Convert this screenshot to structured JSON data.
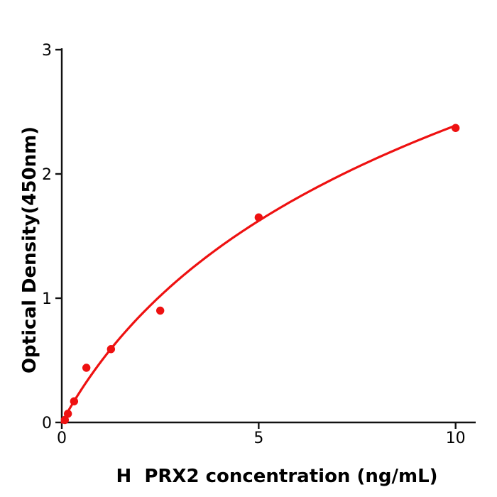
{
  "chart_data": {
    "type": "scatter",
    "subtype": "standard-curve-with-fit",
    "title": "",
    "xlabel": "H  PRX2 concentration (ng/mL)",
    "ylabel": "Optical Density(450nm)",
    "x_ticks": [
      0,
      5,
      10
    ],
    "y_ticks": [
      0,
      1,
      2,
      3
    ],
    "xlim": [
      0,
      10.5
    ],
    "ylim": [
      0,
      3
    ],
    "grid": false,
    "legend": null,
    "points": [
      {
        "x": 0.078,
        "y": 0.02
      },
      {
        "x": 0.156,
        "y": 0.07
      },
      {
        "x": 0.3125,
        "y": 0.17
      },
      {
        "x": 0.625,
        "y": 0.44
      },
      {
        "x": 1.25,
        "y": 0.59
      },
      {
        "x": 2.5,
        "y": 0.9
      },
      {
        "x": 5,
        "y": 1.65
      },
      {
        "x": 10,
        "y": 2.37
      }
    ],
    "fit_curve": {
      "model": "log",
      "formula": "y = a * ln(1 + x/b)",
      "a": 1.52,
      "b": 2.62,
      "x_start": 0,
      "x_end": 10
    },
    "colors": {
      "series": "#ee1111",
      "axis": "#111111",
      "text": "#000000",
      "background": "#ffffff"
    }
  }
}
